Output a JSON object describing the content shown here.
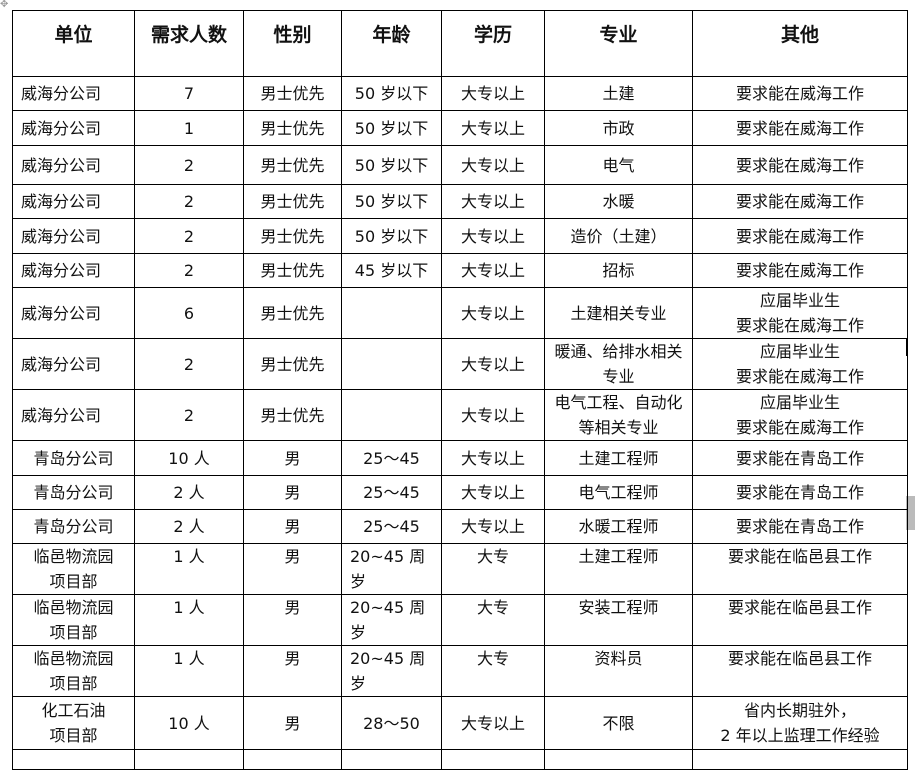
{
  "table": {
    "headers": [
      "单位",
      "需求人数",
      "性别",
      "年龄",
      "学历",
      "专业",
      "其他"
    ],
    "rows": [
      [
        "威海分公司",
        "7",
        "男士优先",
        "50 岁以下",
        "大专以上",
        "土建",
        "要求能在威海工作"
      ],
      [
        "威海分公司",
        "1",
        "男士优先",
        "50 岁以下",
        "大专以上",
        "市政",
        "要求能在威海工作"
      ],
      [
        "威海分公司",
        "2",
        "男士优先",
        "50 岁以下",
        "大专以上",
        "电气",
        "要求能在威海工作"
      ],
      [
        "威海分公司",
        "2",
        "男士优先",
        "50 岁以下",
        "大专以上",
        "水暖",
        "要求能在威海工作"
      ],
      [
        "威海分公司",
        "2",
        "男士优先",
        "50 岁以下",
        "大专以上",
        "造价（土建）",
        "要求能在威海工作"
      ],
      [
        "威海分公司",
        "2",
        "男士优先",
        "45 岁以下",
        "大专以上",
        "招标",
        "要求能在威海工作"
      ],
      [
        "威海分公司",
        "6",
        "男士优先",
        "",
        "大专以上",
        "土建相关专业",
        "应届毕业生\n要求能在威海工作"
      ],
      [
        "威海分公司",
        "2",
        "男士优先",
        "",
        "大专以上",
        "暖通、给排水相关专业",
        "应届毕业生\n要求能在威海工作"
      ],
      [
        "威海分公司",
        "2",
        "男士优先",
        "",
        "大专以上",
        "电气工程、自动化等相关专业",
        "应届毕业生\n要求能在威海工作"
      ],
      [
        "青岛分公司",
        "10 人",
        "男",
        "25～45",
        "大专以上",
        "土建工程师",
        "要求能在青岛工作"
      ],
      [
        "青岛分公司",
        "2 人",
        "男",
        "25～45",
        "大专以上",
        "电气工程师",
        "要求能在青岛工作"
      ],
      [
        "青岛分公司",
        "2 人",
        "男",
        "25～45",
        "大专以上",
        "水暖工程师",
        "要求能在青岛工作"
      ],
      [
        "临邑物流园项目部",
        "1 人",
        "男",
        "20~45  周岁",
        "大专",
        "土建工程师",
        "要求能在临邑县工作"
      ],
      [
        "临邑物流园项目部",
        "1 人",
        "男",
        "20~45  周岁",
        "大专",
        "安装工程师",
        "要求能在临邑县工作"
      ],
      [
        "临邑物流园项目部",
        "1 人",
        "男",
        "20~45  周岁",
        "大专",
        "资料员",
        "要求能在临邑县工作"
      ],
      [
        "化工石油\n项目部",
        "10 人",
        "男",
        "28～50",
        "大专以上",
        "不限",
        "省内长期驻外，\n2 年以上监理工作经验"
      ],
      [
        "",
        "",
        "",
        "",
        "",
        "",
        ""
      ]
    ]
  }
}
